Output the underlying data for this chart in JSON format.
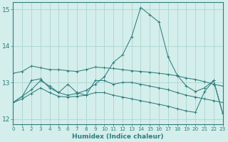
{
  "xlabel": "Humidex (Indice chaleur)",
  "bg_color": "#d4eeeb",
  "grid_color": "#b0d8d4",
  "line_color": "#2e7d7d",
  "xlim": [
    0,
    23
  ],
  "ylim": [
    11.85,
    15.2
  ],
  "yticks": [
    12,
    13,
    14,
    15
  ],
  "xticks": [
    0,
    1,
    2,
    3,
    4,
    5,
    6,
    7,
    8,
    9,
    10,
    11,
    12,
    13,
    14,
    15,
    16,
    17,
    18,
    19,
    20,
    21,
    22,
    23
  ],
  "series": [
    {
      "x": [
        0,
        1,
        2,
        3,
        4,
        5,
        6,
        7,
        8,
        9,
        10,
        11,
        12,
        13,
        14,
        15,
        16,
        17,
        18,
        19,
        20,
        21,
        22,
        23
      ],
      "y": [
        12.45,
        12.62,
        12.8,
        13.05,
        12.9,
        12.72,
        12.65,
        12.7,
        12.78,
        12.95,
        13.15,
        13.55,
        13.75,
        14.25,
        15.05,
        14.85,
        14.65,
        13.7,
        13.2,
        12.9,
        12.75,
        12.85,
        13.05,
        12.15
      ]
    },
    {
      "x": [
        0,
        1,
        2,
        3,
        4,
        5,
        6,
        7,
        8,
        9,
        10,
        11,
        12,
        13,
        14,
        15,
        16,
        17,
        18,
        19,
        20,
        21,
        22,
        23
      ],
      "y": [
        13.25,
        13.3,
        13.45,
        13.4,
        13.35,
        13.35,
        13.32,
        13.3,
        13.35,
        13.42,
        13.4,
        13.38,
        13.35,
        13.32,
        13.3,
        13.28,
        13.25,
        13.22,
        13.18,
        13.12,
        13.08,
        13.02,
        12.95,
        12.9
      ]
    },
    {
      "x": [
        0,
        1,
        2,
        3,
        4,
        5,
        6,
        7,
        8,
        9,
        10,
        11,
        12,
        13,
        14,
        15,
        16,
        17,
        18,
        19,
        20,
        21,
        22,
        23
      ],
      "y": [
        12.45,
        12.62,
        13.05,
        13.1,
        12.85,
        12.72,
        12.95,
        12.72,
        12.65,
        13.05,
        13.05,
        12.95,
        13.0,
        13.0,
        12.95,
        12.9,
        12.85,
        12.8,
        12.72,
        12.65,
        12.6,
        12.55,
        12.5,
        12.45
      ]
    },
    {
      "x": [
        0,
        1,
        2,
        3,
        4,
        5,
        6,
        7,
        8,
        9,
        10,
        11,
        12,
        13,
        14,
        15,
        16,
        17,
        18,
        19,
        20,
        21,
        22,
        23
      ],
      "y": [
        12.45,
        12.55,
        12.7,
        12.85,
        12.72,
        12.62,
        12.6,
        12.62,
        12.65,
        12.72,
        12.72,
        12.65,
        12.6,
        12.55,
        12.5,
        12.45,
        12.4,
        12.35,
        12.28,
        12.22,
        12.18,
        12.75,
        13.05,
        12.15
      ]
    }
  ]
}
